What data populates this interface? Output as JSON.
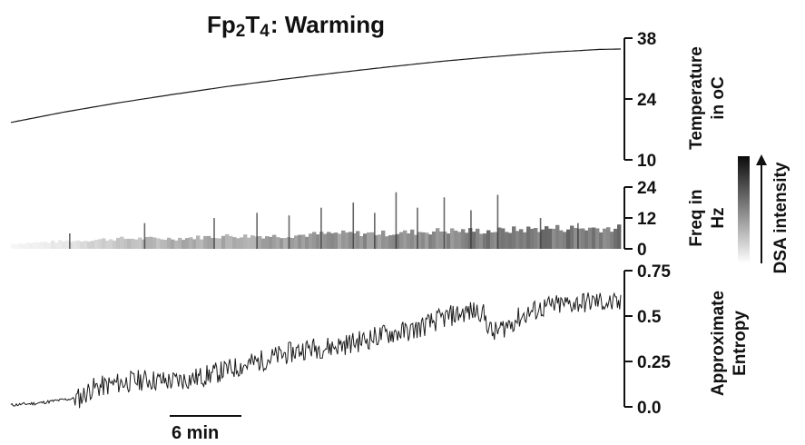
{
  "title": {
    "base": "Fp",
    "sub1": "2",
    "mid": "T",
    "sub2": "4",
    "main": ": Warming"
  },
  "colors": {
    "trace": "#1a1a1a",
    "axis": "#111111",
    "dsa_dark": "#0a0a0a",
    "dsa_light": "#ffffff"
  },
  "chart_data": [
    {
      "type": "line",
      "panel": "temperature",
      "ylabel": [
        "Temperature",
        "in oC"
      ],
      "yticks": [
        "10",
        "24",
        "38"
      ],
      "ylim": [
        10,
        38
      ],
      "xlim": [
        0,
        114
      ],
      "x": [
        0,
        10,
        20,
        30,
        40,
        50,
        60,
        70,
        80,
        90,
        100,
        110,
        114
      ],
      "series": [
        {
          "values": [
            18.6,
            21.0,
            23.1,
            25.0,
            26.8,
            28.4,
            29.9,
            31.3,
            32.6,
            33.7,
            34.7,
            35.4,
            35.5
          ]
        }
      ],
      "grid": false
    },
    {
      "type": "heatmap",
      "panel": "dsa",
      "ylabel": [
        "Freq in",
        "Hz"
      ],
      "yticks": [
        "0",
        "12",
        "24"
      ],
      "ylim": [
        0,
        24
      ],
      "xlim": [
        0,
        114
      ],
      "colorbar_label": "DSA intensity",
      "x": [
        0,
        10,
        20,
        30,
        40,
        50,
        60,
        70,
        80,
        90,
        100,
        110,
        114
      ],
      "band_top_hz": [
        2,
        3,
        4,
        4,
        5,
        5,
        6,
        6,
        7,
        7,
        8,
        8,
        8
      ],
      "intensity": [
        0.05,
        0.15,
        0.35,
        0.45,
        0.5,
        0.55,
        0.6,
        0.65,
        0.7,
        0.75,
        0.78,
        0.8,
        0.8
      ],
      "bursts_x": [
        11,
        25,
        38,
        46,
        52,
        58,
        64,
        68,
        72,
        76,
        81,
        86,
        91,
        99,
        106
      ],
      "bursts_top_hz": [
        6,
        10,
        12,
        14,
        13,
        16,
        18,
        14,
        22,
        16,
        20,
        15,
        21,
        12,
        10
      ]
    },
    {
      "type": "line",
      "panel": "entropy",
      "ylabel": [
        "Approximate",
        "Entropy"
      ],
      "yticks": [
        "0.0",
        "0.25",
        "0.5",
        "0.75"
      ],
      "ylim": [
        0,
        0.75
      ],
      "xlim": [
        0,
        114
      ],
      "x": [
        0,
        5,
        10,
        13,
        15,
        20,
        25,
        30,
        35,
        40,
        45,
        50,
        55,
        60,
        65,
        70,
        75,
        80,
        82,
        85,
        88,
        90,
        95,
        97,
        100,
        105,
        110,
        114
      ],
      "series": [
        {
          "values": [
            0.01,
            0.02,
            0.04,
            0.05,
            0.1,
            0.13,
            0.15,
            0.14,
            0.16,
            0.2,
            0.24,
            0.28,
            0.32,
            0.33,
            0.36,
            0.4,
            0.42,
            0.48,
            0.5,
            0.52,
            0.53,
            0.4,
            0.49,
            0.52,
            0.55,
            0.57,
            0.58,
            0.56
          ]
        }
      ],
      "noise_amplitude": 0.06,
      "grid": false
    }
  ],
  "scalebar": {
    "label": "6 min",
    "minutes": 6
  }
}
